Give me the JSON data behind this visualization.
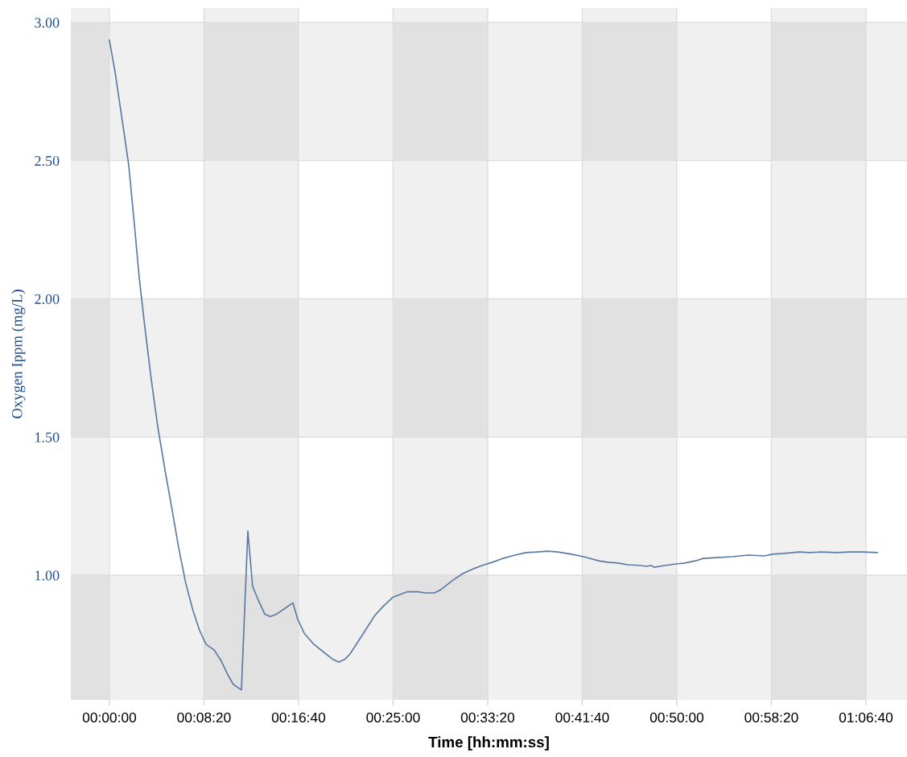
{
  "chart_data": {
    "type": "line",
    "xlabel": "Time [hh:mm:ss]",
    "ylabel": "Oxygen Ippm (mg/L)",
    "x": [
      0,
      30,
      68,
      102,
      132,
      157,
      187,
      221,
      255,
      294,
      332,
      366,
      404,
      443,
      477,
      511,
      553,
      591,
      626,
      655,
      698,
      732,
      757,
      787,
      821,
      851,
      885,
      928,
      970,
      996,
      1030,
      1081,
      1136,
      1183,
      1213,
      1243,
      1272,
      1315,
      1362,
      1404,
      1451,
      1498,
      1536,
      1574,
      1630,
      1668,
      1719,
      1753,
      1813,
      1868,
      1923,
      1970,
      2026,
      2081,
      2145,
      2204,
      2260,
      2315,
      2370,
      2443,
      2506,
      2587,
      2634,
      2689,
      2740,
      2813,
      2838,
      2864,
      2881,
      2936,
      2996,
      3043,
      3098,
      3140,
      3209,
      3294,
      3379,
      3464,
      3506,
      3570,
      3647,
      3702,
      3762,
      3847,
      3915,
      3974,
      4060
    ],
    "series": [
      {
        "color": "#5b7ba3",
        "values": [
          2.936,
          2.82,
          2.645,
          2.485,
          2.27,
          2.08,
          1.9,
          1.71,
          1.54,
          1.38,
          1.235,
          1.1,
          0.97,
          0.87,
          0.8,
          0.75,
          0.73,
          0.69,
          0.64,
          0.605,
          0.585,
          1.16,
          0.96,
          0.91,
          0.86,
          0.85,
          0.86,
          0.88,
          0.9,
          0.84,
          0.79,
          0.75,
          0.72,
          0.695,
          0.686,
          0.695,
          0.715,
          0.76,
          0.81,
          0.855,
          0.89,
          0.92,
          0.93,
          0.94,
          0.94,
          0.936,
          0.936,
          0.948,
          0.98,
          1.006,
          1.023,
          1.035,
          1.047,
          1.061,
          1.073,
          1.082,
          1.084,
          1.087,
          1.084,
          1.076,
          1.067,
          1.052,
          1.047,
          1.044,
          1.038,
          1.035,
          1.032,
          1.035,
          1.029,
          1.035,
          1.041,
          1.044,
          1.052,
          1.061,
          1.064,
          1.067,
          1.073,
          1.07,
          1.076,
          1.079,
          1.084,
          1.082,
          1.084,
          1.082,
          1.084,
          1.084,
          1.082
        ]
      }
    ],
    "xlim": [
      -204,
      4217
    ],
    "ylim": [
      0.549,
      3.052
    ],
    "xticks": [
      {
        "value": 0,
        "label": "00:00:00"
      },
      {
        "value": 500,
        "label": "00:08:20"
      },
      {
        "value": 1000,
        "label": "00:16:40"
      },
      {
        "value": 1500,
        "label": "00:25:00"
      },
      {
        "value": 2000,
        "label": "00:33:20"
      },
      {
        "value": 2500,
        "label": "00:41:40"
      },
      {
        "value": 3000,
        "label": "00:50:00"
      },
      {
        "value": 3500,
        "label": "00:58:20"
      },
      {
        "value": 4000,
        "label": "01:06:40"
      }
    ],
    "yticks": [
      {
        "value": 1,
        "label": "1.00"
      },
      {
        "value": 1.5,
        "label": "1.50"
      },
      {
        "value": 2,
        "label": "2.00"
      },
      {
        "value": 2.5,
        "label": "2.50"
      },
      {
        "value": 3,
        "label": "3.00"
      }
    ],
    "grid": true,
    "marker": "none",
    "line_style": "solid",
    "bands": [
      {
        "axis": "y",
        "from": 2.5,
        "to": 3.0,
        "color": "#f0f0f0"
      },
      {
        "axis": "y",
        "from": 1.5,
        "to": 2.0,
        "color": "#f0f0f0"
      },
      {
        "axis": "y",
        "from": 0.549,
        "to": 1.0,
        "color": "#f0f0f0"
      },
      {
        "axis": "x",
        "from": -204,
        "to": 0,
        "color": "#f0f0f0"
      },
      {
        "axis": "x",
        "from": 500,
        "to": 1000,
        "color": "#f0f0f0"
      },
      {
        "axis": "x",
        "from": 1500,
        "to": 2000,
        "color": "#f0f0f0"
      },
      {
        "axis": "x",
        "from": 2500,
        "to": 3000,
        "color": "#f0f0f0"
      },
      {
        "axis": "x",
        "from": 3500,
        "to": 4000,
        "color": "#f0f0f0"
      }
    ]
  }
}
